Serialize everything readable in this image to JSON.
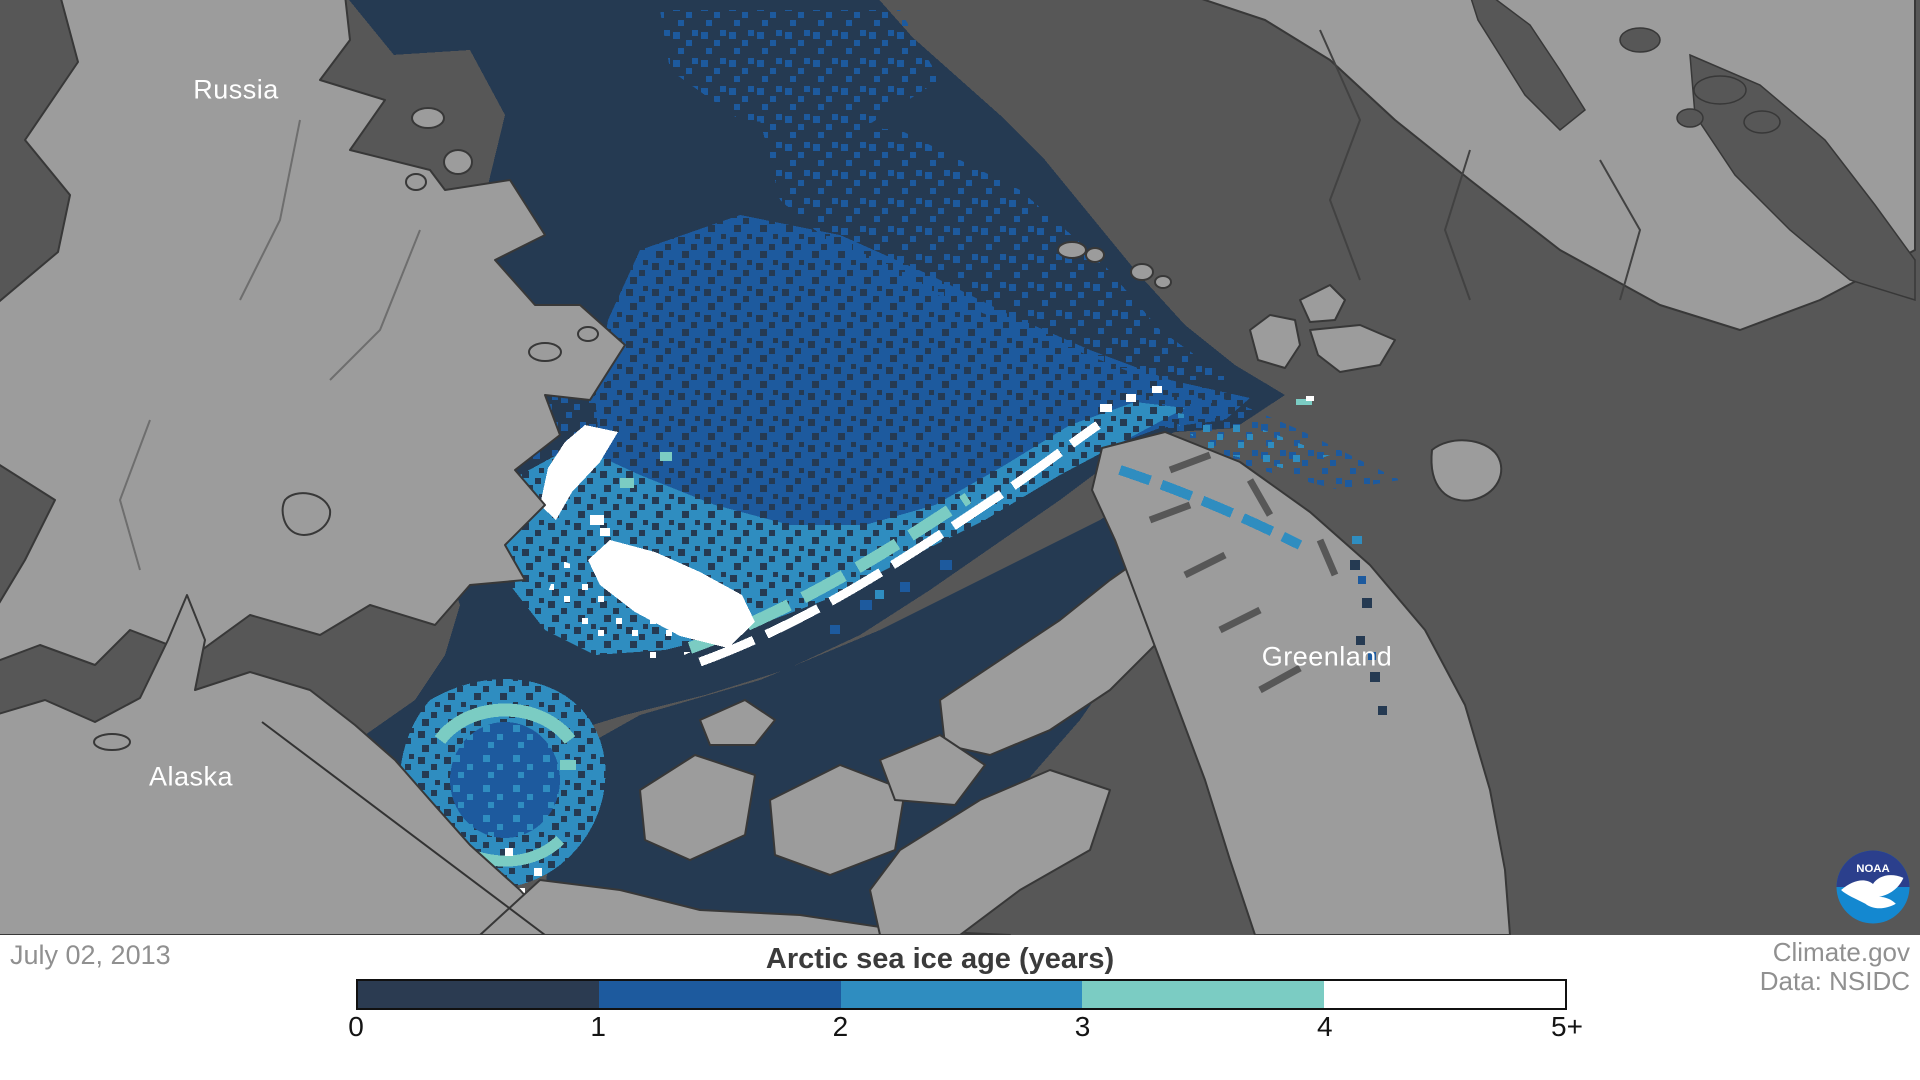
{
  "colors": {
    "ocean": "#575757",
    "land": "#9c9c9c",
    "coast": "#383838",
    "river": "#6e6e6e",
    "border_line": "#424242",
    "ice0": "#253a52",
    "ice1": "#1d5a9e",
    "ice2": "#2f8dc0",
    "ice3": "#7bccc3",
    "ice4": "#ffffff",
    "logo_navy": "#2b3f8c",
    "logo_blue": "#1488d0",
    "muted_text": "#909090",
    "title_text": "#3b3b3b",
    "tick_text": "#141414"
  },
  "map": {
    "date": "July 02, 2013",
    "labels": {
      "russia": "Russia",
      "alaska": "Alaska",
      "greenland": "Greenland"
    },
    "noaa_text": "NOAA"
  },
  "footer": {
    "credit_line1": "Climate.gov",
    "credit_line2": "Data: NSIDC"
  },
  "legend": {
    "title": "Arctic sea ice age (years)",
    "ticks": [
      "0",
      "1",
      "2",
      "3",
      "4",
      "5+"
    ],
    "segments": [
      {
        "range": "0-1 years",
        "color": "#2b3b51"
      },
      {
        "range": "1-2 years",
        "color": "#1d5a9e"
      },
      {
        "range": "2-3 years",
        "color": "#2f8dc0"
      },
      {
        "range": "3-4 years",
        "color": "#7bccc3"
      },
      {
        "range": "4-5+ years",
        "color": "#ffffff"
      }
    ]
  }
}
